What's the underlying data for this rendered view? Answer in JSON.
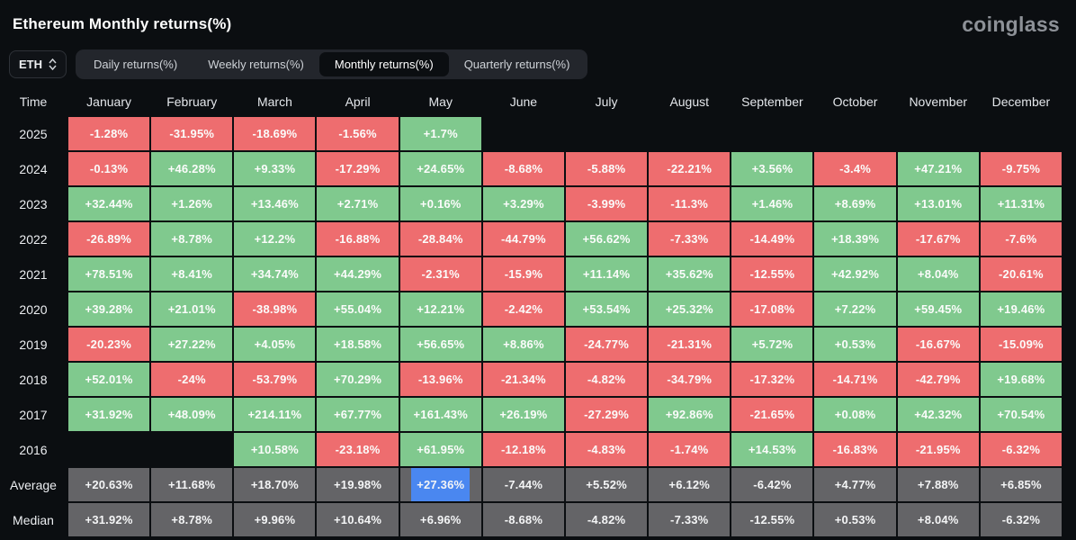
{
  "header": {
    "title": "Ethereum Monthly returns(%)",
    "logo": "coinglass"
  },
  "controls": {
    "symbol": {
      "label": "ETH",
      "icon": "up-down-chevron-icon"
    },
    "tabs": [
      {
        "label": "Daily returns(%)",
        "active": false
      },
      {
        "label": "Weekly returns(%)",
        "active": false
      },
      {
        "label": "Monthly returns(%)",
        "active": true
      },
      {
        "label": "Quarterly returns(%)",
        "active": false
      }
    ]
  },
  "colors": {
    "background": "#0b0e11",
    "positive": "#80c98e",
    "negative": "#ee6d6f",
    "aggregate": "#646467",
    "selection": "#4a87f0"
  },
  "table": {
    "columns": [
      "Time",
      "January",
      "February",
      "March",
      "April",
      "May",
      "June",
      "July",
      "August",
      "September",
      "October",
      "November",
      "December"
    ],
    "rows": [
      {
        "label": "2025",
        "cells": [
          {
            "v": "-1.28%",
            "k": "neg"
          },
          {
            "v": "-31.95%",
            "k": "neg"
          },
          {
            "v": "-18.69%",
            "k": "neg"
          },
          {
            "v": "-1.56%",
            "k": "neg"
          },
          {
            "v": "+1.7%",
            "k": "pos"
          },
          {
            "v": "",
            "k": "empty"
          },
          {
            "v": "",
            "k": "empty"
          },
          {
            "v": "",
            "k": "empty"
          },
          {
            "v": "",
            "k": "empty"
          },
          {
            "v": "",
            "k": "empty"
          },
          {
            "v": "",
            "k": "empty"
          },
          {
            "v": "",
            "k": "empty"
          }
        ]
      },
      {
        "label": "2024",
        "cells": [
          {
            "v": "-0.13%",
            "k": "neg"
          },
          {
            "v": "+46.28%",
            "k": "pos"
          },
          {
            "v": "+9.33%",
            "k": "pos"
          },
          {
            "v": "-17.29%",
            "k": "neg"
          },
          {
            "v": "+24.65%",
            "k": "pos"
          },
          {
            "v": "-8.68%",
            "k": "neg"
          },
          {
            "v": "-5.88%",
            "k": "neg"
          },
          {
            "v": "-22.21%",
            "k": "neg"
          },
          {
            "v": "+3.56%",
            "k": "pos"
          },
          {
            "v": "-3.4%",
            "k": "neg"
          },
          {
            "v": "+47.21%",
            "k": "pos"
          },
          {
            "v": "-9.75%",
            "k": "neg"
          }
        ]
      },
      {
        "label": "2023",
        "cells": [
          {
            "v": "+32.44%",
            "k": "pos"
          },
          {
            "v": "+1.26%",
            "k": "pos"
          },
          {
            "v": "+13.46%",
            "k": "pos"
          },
          {
            "v": "+2.71%",
            "k": "pos"
          },
          {
            "v": "+0.16%",
            "k": "pos"
          },
          {
            "v": "+3.29%",
            "k": "pos"
          },
          {
            "v": "-3.99%",
            "k": "neg"
          },
          {
            "v": "-11.3%",
            "k": "neg"
          },
          {
            "v": "+1.46%",
            "k": "pos"
          },
          {
            "v": "+8.69%",
            "k": "pos"
          },
          {
            "v": "+13.01%",
            "k": "pos"
          },
          {
            "v": "+11.31%",
            "k": "pos"
          }
        ]
      },
      {
        "label": "2022",
        "cells": [
          {
            "v": "-26.89%",
            "k": "neg"
          },
          {
            "v": "+8.78%",
            "k": "pos"
          },
          {
            "v": "+12.2%",
            "k": "pos"
          },
          {
            "v": "-16.88%",
            "k": "neg"
          },
          {
            "v": "-28.84%",
            "k": "neg"
          },
          {
            "v": "-44.79%",
            "k": "neg"
          },
          {
            "v": "+56.62%",
            "k": "pos"
          },
          {
            "v": "-7.33%",
            "k": "neg"
          },
          {
            "v": "-14.49%",
            "k": "neg"
          },
          {
            "v": "+18.39%",
            "k": "pos"
          },
          {
            "v": "-17.67%",
            "k": "neg"
          },
          {
            "v": "-7.6%",
            "k": "neg"
          }
        ]
      },
      {
        "label": "2021",
        "cells": [
          {
            "v": "+78.51%",
            "k": "pos"
          },
          {
            "v": "+8.41%",
            "k": "pos"
          },
          {
            "v": "+34.74%",
            "k": "pos"
          },
          {
            "v": "+44.29%",
            "k": "pos"
          },
          {
            "v": "-2.31%",
            "k": "neg"
          },
          {
            "v": "-15.9%",
            "k": "neg"
          },
          {
            "v": "+11.14%",
            "k": "pos"
          },
          {
            "v": "+35.62%",
            "k": "pos"
          },
          {
            "v": "-12.55%",
            "k": "neg"
          },
          {
            "v": "+42.92%",
            "k": "pos"
          },
          {
            "v": "+8.04%",
            "k": "pos"
          },
          {
            "v": "-20.61%",
            "k": "neg"
          }
        ]
      },
      {
        "label": "2020",
        "cells": [
          {
            "v": "+39.28%",
            "k": "pos"
          },
          {
            "v": "+21.01%",
            "k": "pos"
          },
          {
            "v": "-38.98%",
            "k": "neg"
          },
          {
            "v": "+55.04%",
            "k": "pos"
          },
          {
            "v": "+12.21%",
            "k": "pos"
          },
          {
            "v": "-2.42%",
            "k": "neg"
          },
          {
            "v": "+53.54%",
            "k": "pos"
          },
          {
            "v": "+25.32%",
            "k": "pos"
          },
          {
            "v": "-17.08%",
            "k": "neg"
          },
          {
            "v": "+7.22%",
            "k": "pos"
          },
          {
            "v": "+59.45%",
            "k": "pos"
          },
          {
            "v": "+19.46%",
            "k": "pos"
          }
        ]
      },
      {
        "label": "2019",
        "cells": [
          {
            "v": "-20.23%",
            "k": "neg"
          },
          {
            "v": "+27.22%",
            "k": "pos"
          },
          {
            "v": "+4.05%",
            "k": "pos"
          },
          {
            "v": "+18.58%",
            "k": "pos"
          },
          {
            "v": "+56.65%",
            "k": "pos"
          },
          {
            "v": "+8.86%",
            "k": "pos"
          },
          {
            "v": "-24.77%",
            "k": "neg"
          },
          {
            "v": "-21.31%",
            "k": "neg"
          },
          {
            "v": "+5.72%",
            "k": "pos"
          },
          {
            "v": "+0.53%",
            "k": "pos"
          },
          {
            "v": "-16.67%",
            "k": "neg"
          },
          {
            "v": "-15.09%",
            "k": "neg"
          }
        ]
      },
      {
        "label": "2018",
        "cells": [
          {
            "v": "+52.01%",
            "k": "pos"
          },
          {
            "v": "-24%",
            "k": "neg"
          },
          {
            "v": "-53.79%",
            "k": "neg"
          },
          {
            "v": "+70.29%",
            "k": "pos"
          },
          {
            "v": "-13.96%",
            "k": "neg"
          },
          {
            "v": "-21.34%",
            "k": "neg"
          },
          {
            "v": "-4.82%",
            "k": "neg"
          },
          {
            "v": "-34.79%",
            "k": "neg"
          },
          {
            "v": "-17.32%",
            "k": "neg"
          },
          {
            "v": "-14.71%",
            "k": "neg"
          },
          {
            "v": "-42.79%",
            "k": "neg"
          },
          {
            "v": "+19.68%",
            "k": "pos"
          }
        ]
      },
      {
        "label": "2017",
        "cells": [
          {
            "v": "+31.92%",
            "k": "pos"
          },
          {
            "v": "+48.09%",
            "k": "pos"
          },
          {
            "v": "+214.11%",
            "k": "pos"
          },
          {
            "v": "+67.77%",
            "k": "pos"
          },
          {
            "v": "+161.43%",
            "k": "pos"
          },
          {
            "v": "+26.19%",
            "k": "pos"
          },
          {
            "v": "-27.29%",
            "k": "neg"
          },
          {
            "v": "+92.86%",
            "k": "pos"
          },
          {
            "v": "-21.65%",
            "k": "neg"
          },
          {
            "v": "+0.08%",
            "k": "pos"
          },
          {
            "v": "+42.32%",
            "k": "pos"
          },
          {
            "v": "+70.54%",
            "k": "pos"
          }
        ]
      },
      {
        "label": "2016",
        "cells": [
          {
            "v": "",
            "k": "empty"
          },
          {
            "v": "",
            "k": "empty"
          },
          {
            "v": "+10.58%",
            "k": "pos"
          },
          {
            "v": "-23.18%",
            "k": "neg"
          },
          {
            "v": "+61.95%",
            "k": "pos"
          },
          {
            "v": "-12.18%",
            "k": "neg"
          },
          {
            "v": "-4.83%",
            "k": "neg"
          },
          {
            "v": "-1.74%",
            "k": "neg"
          },
          {
            "v": "+14.53%",
            "k": "pos"
          },
          {
            "v": "-16.83%",
            "k": "neg"
          },
          {
            "v": "-21.95%",
            "k": "neg"
          },
          {
            "v": "-6.32%",
            "k": "neg"
          }
        ]
      },
      {
        "label": "Average",
        "cells": [
          {
            "v": "+20.63%",
            "k": "avg"
          },
          {
            "v": "+11.68%",
            "k": "avg"
          },
          {
            "v": "+18.70%",
            "k": "avg"
          },
          {
            "v": "+19.98%",
            "k": "avg"
          },
          {
            "v": "+27.36%",
            "k": "avg",
            "sel": true
          },
          {
            "v": "-7.44%",
            "k": "avg"
          },
          {
            "v": "+5.52%",
            "k": "avg"
          },
          {
            "v": "+6.12%",
            "k": "avg"
          },
          {
            "v": "-6.42%",
            "k": "avg"
          },
          {
            "v": "+4.77%",
            "k": "avg"
          },
          {
            "v": "+7.88%",
            "k": "avg"
          },
          {
            "v": "+6.85%",
            "k": "avg"
          }
        ]
      },
      {
        "label": "Median",
        "cells": [
          {
            "v": "+31.92%",
            "k": "avg"
          },
          {
            "v": "+8.78%",
            "k": "avg"
          },
          {
            "v": "+9.96%",
            "k": "avg"
          },
          {
            "v": "+10.64%",
            "k": "avg"
          },
          {
            "v": "+6.96%",
            "k": "avg"
          },
          {
            "v": "-8.68%",
            "k": "avg"
          },
          {
            "v": "-4.82%",
            "k": "avg"
          },
          {
            "v": "-7.33%",
            "k": "avg"
          },
          {
            "v": "-12.55%",
            "k": "avg"
          },
          {
            "v": "+0.53%",
            "k": "avg"
          },
          {
            "v": "+8.04%",
            "k": "avg"
          },
          {
            "v": "-6.32%",
            "k": "avg"
          }
        ]
      }
    ]
  }
}
